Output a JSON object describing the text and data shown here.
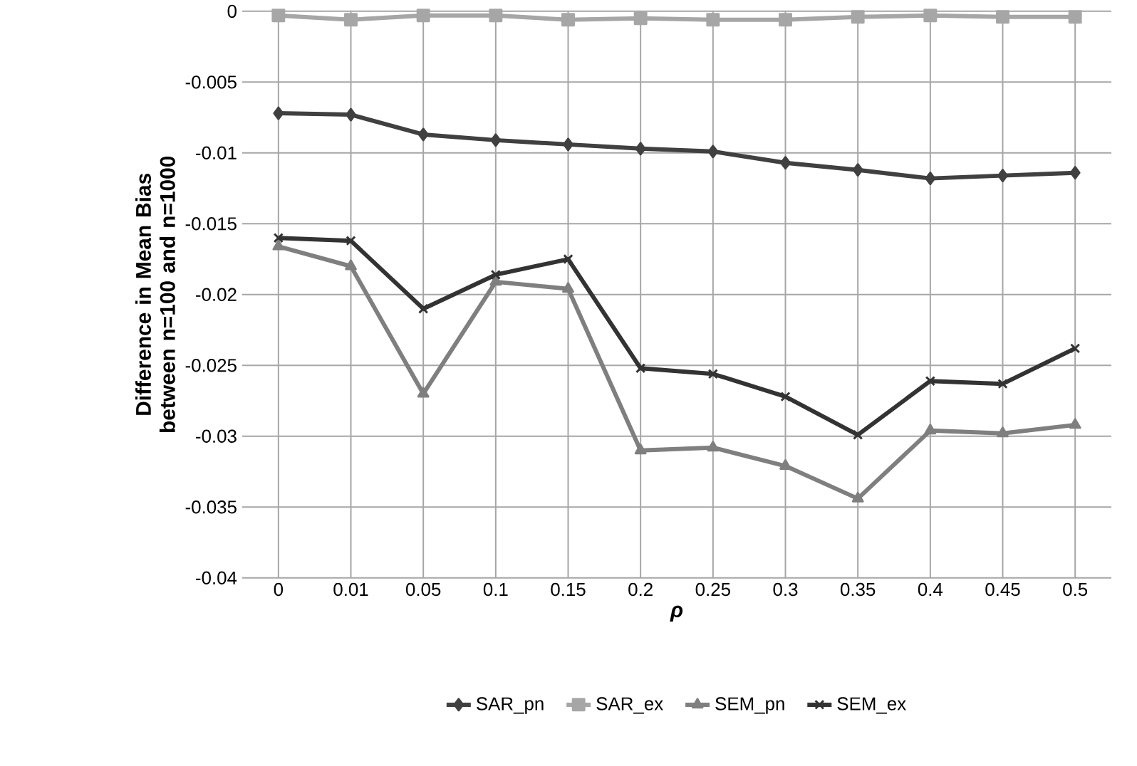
{
  "chart_data": {
    "type": "line",
    "xlabel": "ρ",
    "ylabel": "Difference in Mean Bias between n=100 and n=1000",
    "categories": [
      "0",
      "0.01",
      "0.05",
      "0.1",
      "0.15",
      "0.2",
      "0.25",
      "0.3",
      "0.35",
      "0.4",
      "0.45",
      "0.5"
    ],
    "ylim": [
      -0.04,
      0
    ],
    "yticks": [
      -0.04,
      -0.035,
      -0.03,
      -0.025,
      -0.02,
      -0.015,
      -0.01,
      -0.005,
      0
    ],
    "grid": true,
    "legend": "bottom",
    "series": [
      {
        "name": "SAR_pn",
        "color": "#404040",
        "marker": "diamond",
        "values": [
          -0.0072,
          -0.0073,
          -0.0087,
          -0.0091,
          -0.0094,
          -0.0097,
          -0.0099,
          -0.0107,
          -0.0112,
          -0.0118,
          -0.0116,
          -0.0114
        ]
      },
      {
        "name": "SAR_ex",
        "color": "#a6a6a6",
        "marker": "square",
        "values": [
          -0.0003,
          -0.0006,
          -0.0003,
          -0.0003,
          -0.0006,
          -0.0005,
          -0.0006,
          -0.0006,
          -0.0004,
          -0.0003,
          -0.0004,
          -0.0004
        ]
      },
      {
        "name": "SEM_pn",
        "color": "#7f7f7f",
        "marker": "triangle",
        "values": [
          -0.0166,
          -0.018,
          -0.027,
          -0.0191,
          -0.0196,
          -0.031,
          -0.0308,
          -0.0321,
          -0.0344,
          -0.0296,
          -0.0298,
          -0.0292
        ]
      },
      {
        "name": "SEM_ex",
        "color": "#333333",
        "marker": "cross",
        "values": [
          -0.016,
          -0.0162,
          -0.021,
          -0.0186,
          -0.0175,
          -0.0252,
          -0.0256,
          -0.0272,
          -0.0299,
          -0.0261,
          -0.0263,
          -0.0238
        ]
      }
    ]
  }
}
